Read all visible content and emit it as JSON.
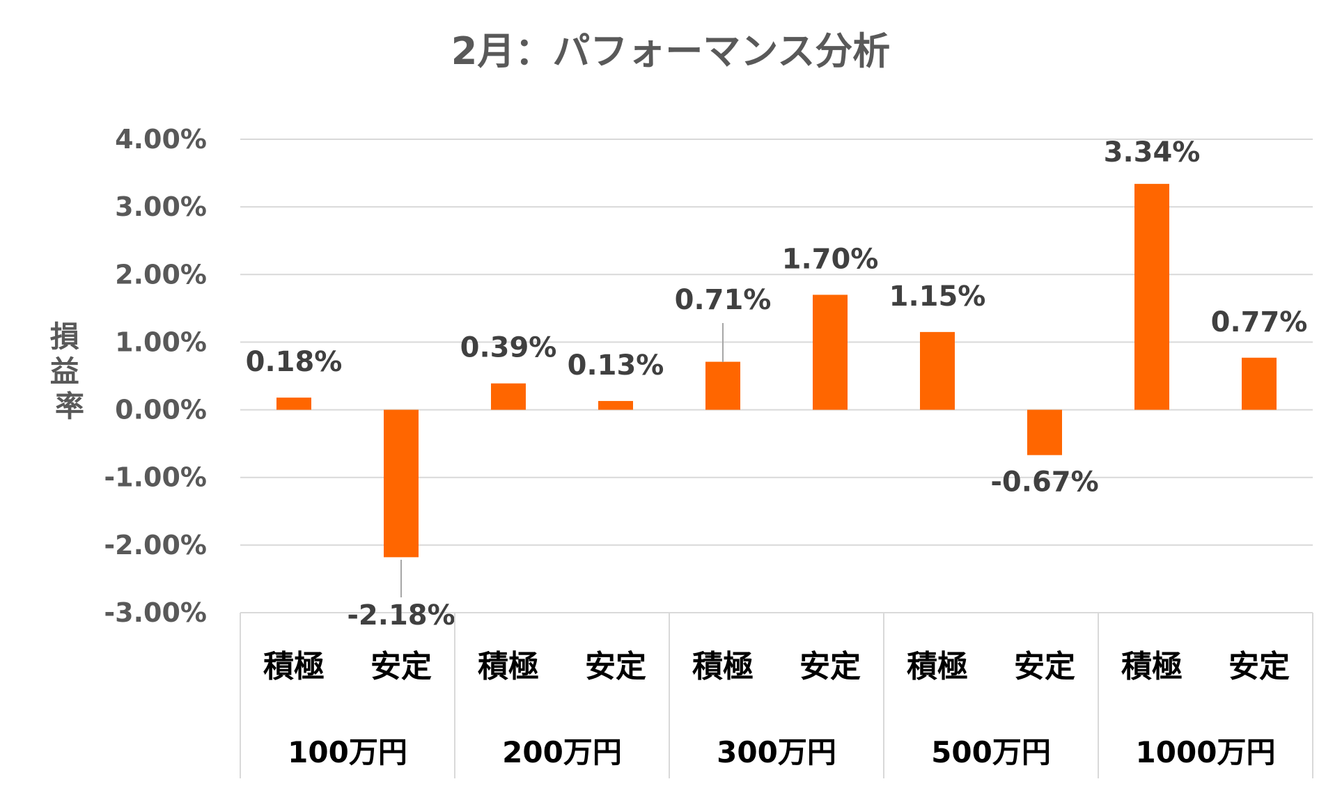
{
  "chart_data": {
    "type": "bar",
    "title": "2月：パフォーマンス分析",
    "ylabel": "損益率",
    "ylim": [
      -3.0,
      4.0
    ],
    "yticks": [
      "4.00%",
      "3.00%",
      "2.00%",
      "1.00%",
      "0.00%",
      "-1.00%",
      "-2.00%",
      "-3.00%"
    ],
    "grid": true,
    "bar_color": "#ff6600",
    "groups": [
      "100万円",
      "200万円",
      "300万円",
      "500万円",
      "1000万円"
    ],
    "categories": [
      "積極",
      "安定",
      "積極",
      "安定",
      "積極",
      "安定",
      "積極",
      "安定",
      "積極",
      "安定"
    ],
    "values": [
      0.18,
      -2.18,
      0.39,
      0.13,
      0.71,
      1.7,
      1.15,
      -0.67,
      3.34,
      0.77
    ],
    "labels": [
      "0.18%",
      "-2.18%",
      "0.39%",
      "0.13%",
      "0.71%",
      "1.70%",
      "1.15%",
      "-0.67%",
      "3.34%",
      "0.77%"
    ]
  }
}
